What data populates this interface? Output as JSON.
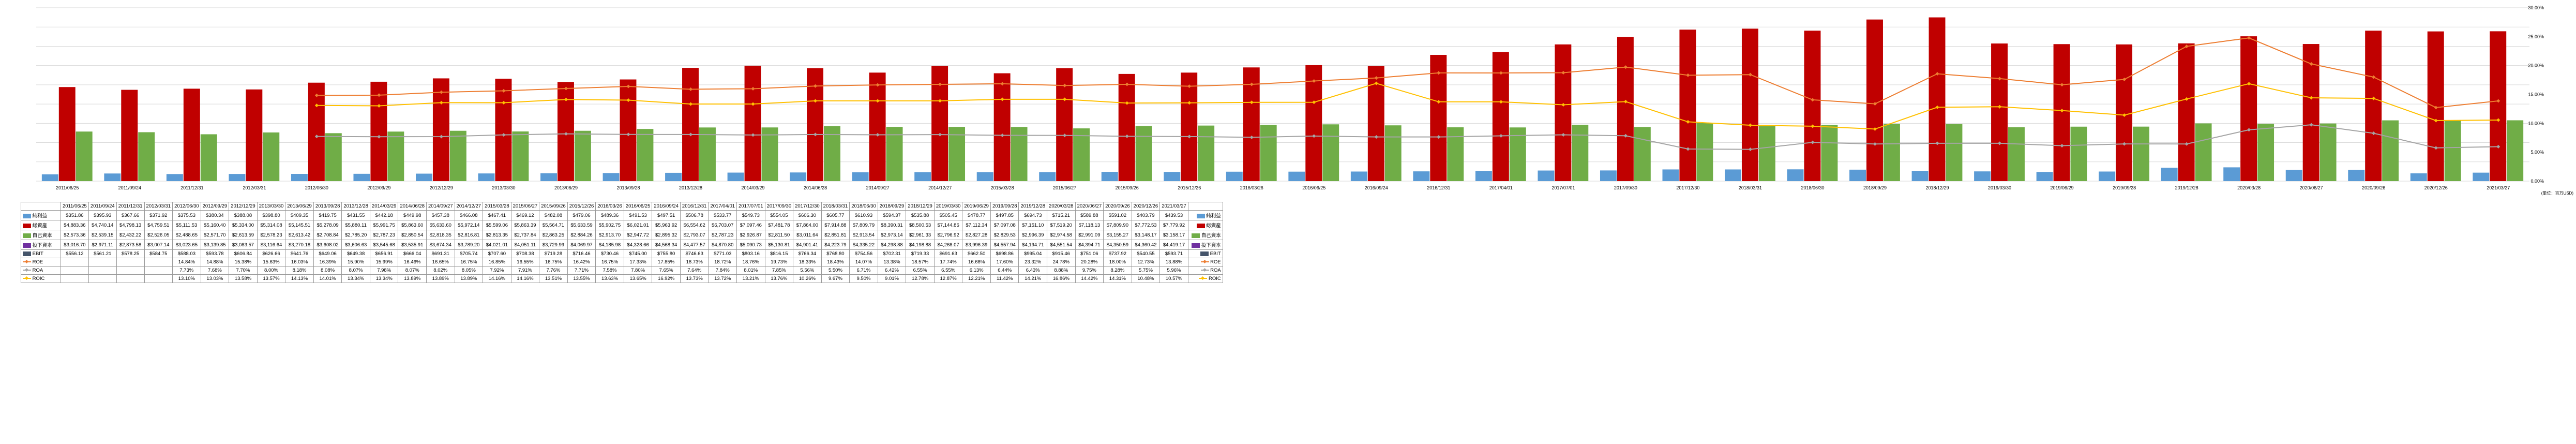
{
  "chart": {
    "type": "bar+line",
    "unit_label": "(単位：百万USD)",
    "left_axis": {
      "min": 0,
      "max": 9000,
      "ticks": [
        0,
        1000,
        2000,
        3000,
        4000,
        5000,
        6000,
        7000,
        8000,
        9000
      ],
      "tick_labels": [
        "$0",
        "$1,000",
        "$2,000",
        "$3,000",
        "$4,000",
        "$5,000",
        "$6,000",
        "$7,000",
        "$8,000",
        "$9,000"
      ]
    },
    "right_axis": {
      "min": 0,
      "max": 30,
      "ticks": [
        0,
        5,
        10,
        15,
        20,
        25,
        30
      ],
      "tick_labels": [
        "0.00%",
        "5.00%",
        "10.00%",
        "15.00%",
        "20.00%",
        "25.00%",
        "30.00%"
      ]
    },
    "periods": [
      "2011/06/25",
      "2011/09/24",
      "2011/12/31",
      "2012/03/31",
      "2012/06/30",
      "2012/09/29",
      "2012/12/29",
      "2013/03/30",
      "2013/06/29",
      "2013/09/28",
      "2013/12/28",
      "2014/03/29",
      "2014/06/28",
      "2014/09/27",
      "2014/12/27",
      "2015/03/28",
      "2015/06/27",
      "2015/09/26",
      "2015/12/26",
      "2016/03/26",
      "2016/06/25",
      "2016/09/24",
      "2016/12/31",
      "2017/04/01",
      "2017/07/01",
      "2017/09/30",
      "2017/12/30",
      "2018/03/31",
      "2018/06/30",
      "2018/09/29",
      "2018/12/29",
      "2019/03/30",
      "2019/06/29",
      "2019/09/28",
      "2019/12/28",
      "2020/03/28",
      "2020/06/27",
      "2020/09/26",
      "2020/12/26",
      "2021/03/27"
    ],
    "bars": [
      {
        "key": "net_income",
        "label": "純利益",
        "color": "#5b9bd5",
        "values": [
          351.86,
          395.93,
          367.66,
          371.92,
          375.53,
          380.34,
          388.08,
          398.8,
          409.35,
          419.75,
          431.55,
          442.18,
          449.98,
          457.38,
          466.08,
          467.41,
          469.12,
          482.08,
          479.06,
          489.36,
          491.53,
          497.51,
          506.78,
          533.77,
          549.73,
          554.05,
          606.3,
          605.77,
          610.93,
          594.37,
          535.88,
          505.45,
          478.77,
          497.85,
          694.73,
          715.21,
          589.88,
          591.02,
          403.79,
          439.53
        ]
      },
      {
        "key": "total_assets",
        "label": "総資産",
        "color": "#c00000",
        "values": [
          4883.36,
          4740.14,
          4798.13,
          4759.51,
          5111.53,
          5160.4,
          5334.0,
          5314.08,
          5145.51,
          5278.09,
          5880.11,
          5991.75,
          5863.6,
          5633.6,
          5972.14,
          5599.06,
          5863.39,
          5564.71,
          5633.59,
          5902.75,
          6021.01,
          5963.92,
          6554.62,
          6703.07,
          7097.46,
          7481.78,
          7864.0,
          7914.88,
          7809.79,
          8390.31,
          8500.53,
          7144.86,
          7112.34,
          7097.08,
          7151.1,
          7519.2,
          7118.13,
          7809.9,
          7772.53,
          7779.92
        ]
      },
      {
        "key": "equity",
        "label": "自己資本",
        "color": "#70ad47",
        "values": [
          2573.36,
          2539.15,
          2432.22,
          2526.05,
          2488.65,
          2571.7,
          2613.59,
          2578.23,
          2613.42,
          2708.84,
          2785.2,
          2787.23,
          2850.54,
          2818.35,
          2816.81,
          2813.35,
          2737.84,
          2863.25,
          2884.26,
          2913.7,
          2947.72,
          2895.32,
          2793.07,
          2787.23,
          2926.87,
          2811.5,
          3011.64,
          2851.81,
          2913.54,
          2973.14,
          2961.33,
          2796.92,
          2827.28,
          2829.53,
          2996.39,
          2974.58,
          2991.09,
          3155.27,
          3148.17,
          3158.17
        ]
      }
    ],
    "bars_invested_capital": {
      "key": "inv_cap",
      "label": "投下資本",
      "color": "#7030a0",
      "values": [
        3016.7,
        2971.11,
        2873.58,
        3007.14,
        null,
        null,
        null,
        null,
        null,
        null,
        null,
        null,
        null,
        null,
        null,
        null,
        null,
        null,
        null,
        null,
        null,
        null,
        null,
        null,
        null,
        null,
        null,
        null,
        null,
        null,
        null,
        null,
        null,
        null,
        null,
        null,
        null,
        null,
        null,
        null
      ]
    },
    "bars_ebit": {
      "key": "ebit",
      "label": "EBIT",
      "color": "#44546a",
      "values": [
        556.12,
        561.21,
        578.25,
        584.75,
        588.03,
        593.78,
        606.84,
        626.66,
        641.76,
        649.06,
        649.38,
        656.91,
        666.04,
        691.31,
        705.74,
        707.6,
        708.38,
        719.28,
        716.46,
        730.46,
        745.0,
        755.8,
        746.63,
        771.03,
        803.16,
        816.15,
        766.34,
        768.8,
        754.56,
        702.31,
        719.33,
        691.63,
        662.5,
        698.86,
        995.04,
        915.46,
        751.06,
        737.92,
        540.55,
        593.71
      ]
    },
    "lines": [
      {
        "key": "roe",
        "label": "ROE",
        "color": "#ed7d31",
        "values": [
          null,
          null,
          null,
          null,
          14.84,
          14.88,
          15.38,
          15.63,
          16.03,
          16.39,
          15.9,
          15.99,
          16.46,
          16.65,
          16.75,
          16.85,
          16.55,
          16.75,
          16.42,
          16.75,
          17.33,
          17.85,
          18.73,
          18.72,
          18.76,
          19.73,
          18.33,
          18.43,
          14.07,
          13.38,
          18.57,
          17.74,
          16.68,
          17.6,
          23.32,
          24.78,
          20.28,
          18.0,
          12.73,
          13.88
        ]
      },
      {
        "key": "roa",
        "label": "ROA",
        "color": "#a5a5a5",
        "values": [
          null,
          null,
          null,
          null,
          7.73,
          7.68,
          7.7,
          8.0,
          8.18,
          8.08,
          8.07,
          7.98,
          8.07,
          8.02,
          8.05,
          7.92,
          7.91,
          7.76,
          7.71,
          7.58,
          7.8,
          7.65,
          7.64,
          7.84,
          8.01,
          7.85,
          5.56,
          5.5,
          6.71,
          6.42,
          6.55,
          6.55,
          6.13,
          6.44,
          6.43,
          8.88,
          9.75,
          8.28,
          5.75,
          5.96
        ]
      },
      {
        "key": "roic",
        "label": "ROIC",
        "color": "#ffc000",
        "values": [
          null,
          null,
          null,
          null,
          13.1,
          13.03,
          13.58,
          13.57,
          14.13,
          14.01,
          13.34,
          13.34,
          13.89,
          13.89,
          13.89,
          14.16,
          14.16,
          13.51,
          13.55,
          13.63,
          13.65,
          16.92,
          13.73,
          13.72,
          13.21,
          13.76,
          10.26,
          9.67,
          9.5,
          9.01,
          12.78,
          12.87,
          12.21,
          11.42,
          14.21,
          16.86,
          14.42,
          14.31,
          10.48,
          10.57
        ]
      }
    ],
    "grid_color": "#d9d9d9",
    "bg": "#ffffff",
    "bar_group_width": 0.82,
    "line_width": 2,
    "marker_size": 5
  },
  "table": {
    "row_order": [
      "net_income",
      "total_assets",
      "equity",
      "inv_cap",
      "ebit",
      "roe",
      "roa",
      "roic"
    ],
    "row_labels": {
      "net_income": "純利益",
      "total_assets": "総資産",
      "equity": "自己資本",
      "inv_cap": "投下資本",
      "ebit": "EBIT",
      "roe": "ROE",
      "roa": "ROA",
      "roic": "ROIC"
    },
    "row_colors": {
      "net_income": "#5b9bd5",
      "total_assets": "#c00000",
      "equity": "#70ad47",
      "inv_cap": "#7030a0",
      "ebit": "#44546a",
      "roe": "#ed7d31",
      "roa": "#a5a5a5",
      "roic": "#ffc000"
    },
    "row_is_line": {
      "roe": true,
      "roa": true,
      "roic": true
    },
    "currency_rows": [
      "net_income",
      "total_assets",
      "equity",
      "inv_cap",
      "ebit"
    ],
    "percent_rows": [
      "roe",
      "roa",
      "roic"
    ],
    "cells": {
      "net_income": [
        "$351.86",
        "$395.93",
        "$367.66",
        "$371.92",
        "$375.53",
        "$380.34",
        "$388.08",
        "$398.80",
        "$409.35",
        "$419.75",
        "$431.55",
        "$442.18",
        "$449.98",
        "$457.38",
        "$466.08",
        "$467.41",
        "$469.12",
        "$482.08",
        "$479.06",
        "$489.36",
        "$491.53",
        "$497.51",
        "$506.78",
        "$533.77",
        "$549.73",
        "$554.05",
        "$606.30",
        "$605.77",
        "$610.93",
        "$594.37",
        "$535.88",
        "$505.45",
        "$478.77",
        "$497.85",
        "$694.73",
        "$715.21",
        "$589.88",
        "$591.02",
        "$403.79",
        "$439.53"
      ],
      "total_assets": [
        "$4,883.36",
        "$4,740.14",
        "$4,798.13",
        "$4,759.51",
        "$5,111.53",
        "$5,160.40",
        "$5,334.00",
        "$5,314.08",
        "$5,145.51",
        "$5,278.09",
        "$5,880.11",
        "$5,991.75",
        "$5,863.60",
        "$5,633.60",
        "$5,972.14",
        "$5,599.06",
        "$5,863.39",
        "$5,564.71",
        "$5,633.59",
        "$5,902.75",
        "$6,021.01",
        "$5,963.92",
        "$6,554.62",
        "$6,703.07",
        "$7,097.46",
        "$7,481.78",
        "$7,864.00",
        "$7,914.88",
        "$7,809.79",
        "$8,390.31",
        "$8,500.53",
        "$7,144.86",
        "$7,112.34",
        "$7,097.08",
        "$7,151.10",
        "$7,519.20",
        "$7,118.13",
        "$7,809.90",
        "$7,772.53",
        "$7,779.92"
      ],
      "equity": [
        "$2,573.36",
        "$2,539.15",
        "$2,432.22",
        "$2,526.05",
        "$2,488.65",
        "$2,571.70",
        "$2,613.59",
        "$2,578.23",
        "$2,613.42",
        "$2,708.84",
        "$2,785.20",
        "$2,787.23",
        "$2,850.54",
        "$2,818.35",
        "$2,816.81",
        "$2,813.35",
        "$2,737.84",
        "$2,863.25",
        "$2,884.26",
        "$2,913.70",
        "$2,947.72",
        "$2,895.32",
        "$2,793.07",
        "$2,787.23",
        "$2,926.87",
        "$2,811.50",
        "$3,011.64",
        "$2,851.81",
        "$2,913.54",
        "$2,973.14",
        "$2,961.33",
        "$2,796.92",
        "$2,827.28",
        "$2,829.53",
        "$2,996.39",
        "$2,974.58",
        "$2,991.09",
        "$3,155.27",
        "$3,148.17",
        "$3,158.17"
      ],
      "inv_cap": [
        "$3,016.70",
        "$2,971.11",
        "$2,873.58",
        "$3,007.14",
        "$3,023.65",
        "$3,139.85",
        "$3,083.57",
        "$3,116.64",
        "$3,270.18",
        "$3,608.02",
        "$3,606.63",
        "$3,545.68",
        "$3,535.91",
        "$3,674.34",
        "$3,789.20",
        "$4,021.01",
        "$4,051.11",
        "$3,729.99",
        "$4,069.97",
        "$4,185.98",
        "$4,328.66",
        "$4,568.34",
        "$4,477.57",
        "$4,870.80",
        "$5,090.73",
        "$5,130.81",
        "$4,901.41",
        "$4,223.79",
        "$4,335.22",
        "$4,298.88",
        "$4,198.88",
        "$4,268.07",
        "$3,996.39",
        "$4,557.94",
        "$4,194.71",
        "$4,551.54",
        "$4,394.71",
        "$4,350.59",
        "$4,360.42",
        "$4,419.17"
      ],
      "ebit": [
        "$556.12",
        "$561.21",
        "$578.25",
        "$584.75",
        "$588.03",
        "$593.78",
        "$606.84",
        "$626.66",
        "$641.76",
        "$649.06",
        "$649.38",
        "$656.91",
        "$666.04",
        "$691.31",
        "$705.74",
        "$707.60",
        "$708.38",
        "$719.28",
        "$716.46",
        "$730.46",
        "$745.00",
        "$755.80",
        "$746.63",
        "$771.03",
        "$803.16",
        "$816.15",
        "$766.34",
        "$768.80",
        "$754.56",
        "$702.31",
        "$719.33",
        "$691.63",
        "$662.50",
        "$698.86",
        "$995.04",
        "$915.46",
        "$751.06",
        "$737.92",
        "$540.55",
        "$593.71"
      ],
      "roe": [
        "",
        "",
        "",
        "",
        "14.84%",
        "14.88%",
        "15.38%",
        "15.63%",
        "16.03%",
        "16.39%",
        "15.90%",
        "15.99%",
        "16.46%",
        "16.65%",
        "16.75%",
        "16.85%",
        "16.55%",
        "16.75%",
        "16.42%",
        "16.75%",
        "17.33%",
        "17.85%",
        "18.73%",
        "18.72%",
        "18.76%",
        "19.73%",
        "18.33%",
        "18.43%",
        "14.07%",
        "13.38%",
        "18.57%",
        "17.74%",
        "16.68%",
        "17.60%",
        "23.32%",
        "24.78%",
        "20.28%",
        "18.00%",
        "12.73%",
        "13.88%"
      ],
      "roa": [
        "",
        "",
        "",
        "",
        "7.73%",
        "7.68%",
        "7.70%",
        "8.00%",
        "8.18%",
        "8.08%",
        "8.07%",
        "7.98%",
        "8.07%",
        "8.02%",
        "8.05%",
        "7.92%",
        "7.91%",
        "7.76%",
        "7.71%",
        "7.58%",
        "7.80%",
        "7.65%",
        "7.64%",
        "7.84%",
        "8.01%",
        "7.85%",
        "5.56%",
        "5.50%",
        "6.71%",
        "6.42%",
        "6.55%",
        "6.55%",
        "6.13%",
        "6.44%",
        "6.43%",
        "8.88%",
        "9.75%",
        "8.28%",
        "5.75%",
        "5.96%"
      ],
      "roic": [
        "",
        "",
        "",
        "",
        "13.10%",
        "13.03%",
        "13.58%",
        "13.57%",
        "14.13%",
        "14.01%",
        "13.34%",
        "13.34%",
        "13.89%",
        "13.89%",
        "13.89%",
        "14.16%",
        "14.16%",
        "13.51%",
        "13.55%",
        "13.63%",
        "13.65%",
        "16.92%",
        "13.73%",
        "13.72%",
        "13.21%",
        "13.76%",
        "10.26%",
        "9.67%",
        "9.50%",
        "9.01%",
        "12.78%",
        "12.87%",
        "12.21%",
        "11.42%",
        "14.21%",
        "16.86%",
        "14.42%",
        "14.31%",
        "10.48%",
        "10.57%"
      ]
    }
  }
}
